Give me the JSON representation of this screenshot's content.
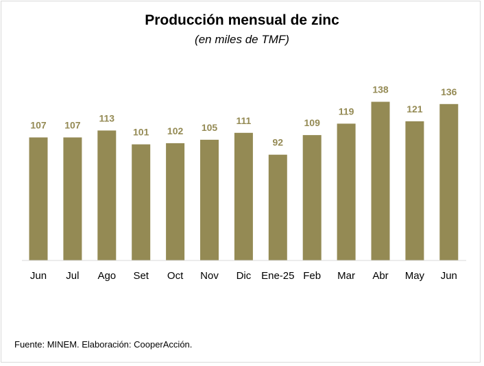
{
  "chart_data": {
    "type": "bar",
    "title": "Producción mensual de zinc",
    "subtitle": "(en miles de TMF)",
    "categories": [
      "Jun",
      "Jul",
      "Ago",
      "Set",
      "Oct",
      "Nov",
      "Dic",
      "Ene-25",
      "Feb",
      "Mar",
      "Abr",
      "May",
      "Jun"
    ],
    "values": [
      107,
      107,
      113,
      101,
      102,
      105,
      111,
      92,
      109,
      119,
      138,
      121,
      136
    ],
    "xlabel": "",
    "ylabel": "",
    "ylim": [
      0,
      160
    ],
    "grid": false,
    "legend": "none",
    "bar_color": "#948a54",
    "label_color": "#948a54"
  },
  "source": "Fuente: MINEM. Elaboración: CooperAcción."
}
